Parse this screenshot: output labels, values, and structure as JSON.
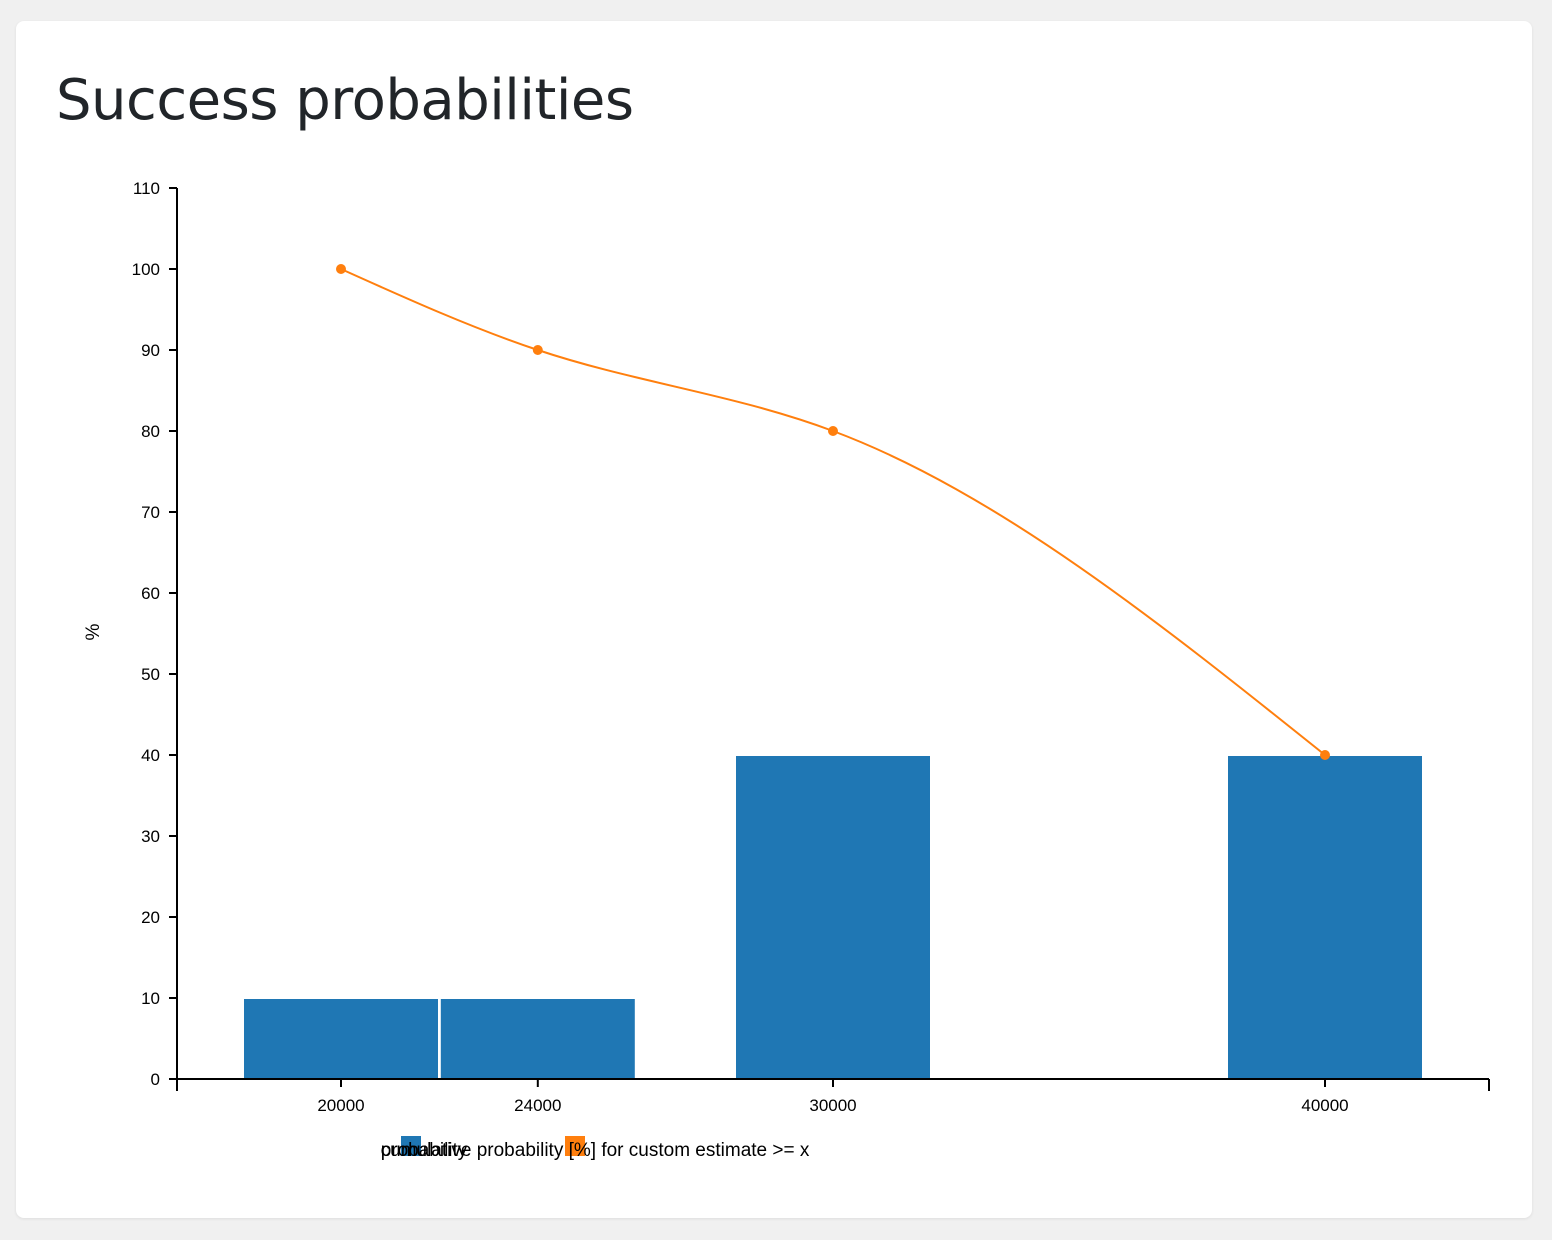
{
  "card": {
    "title": "Success probabilities"
  },
  "chart_data": {
    "type": "bar",
    "x": [
      20000,
      24000,
      30000,
      40000
    ],
    "x_tick_labels": [
      "20000",
      "24000",
      "30000",
      "40000"
    ],
    "xlim": [
      16666.67,
      43333.33
    ],
    "ylim": [
      0,
      110
    ],
    "y_ticks": [
      0,
      10,
      20,
      30,
      40,
      50,
      60,
      70,
      80,
      90,
      100,
      110
    ],
    "ylabel": "%",
    "xlabel": "",
    "grid": false,
    "legend_position": "bottom-center",
    "series": [
      {
        "name": "probability",
        "type": "bar",
        "color": "#1f77b4",
        "values": [
          10,
          10,
          40,
          40
        ]
      },
      {
        "name": "cumulative probability [%] for custom estimate >= x",
        "type": "line",
        "color": "#ff7f0e",
        "smooth": true,
        "values": [
          100,
          90,
          80,
          40
        ]
      }
    ]
  }
}
